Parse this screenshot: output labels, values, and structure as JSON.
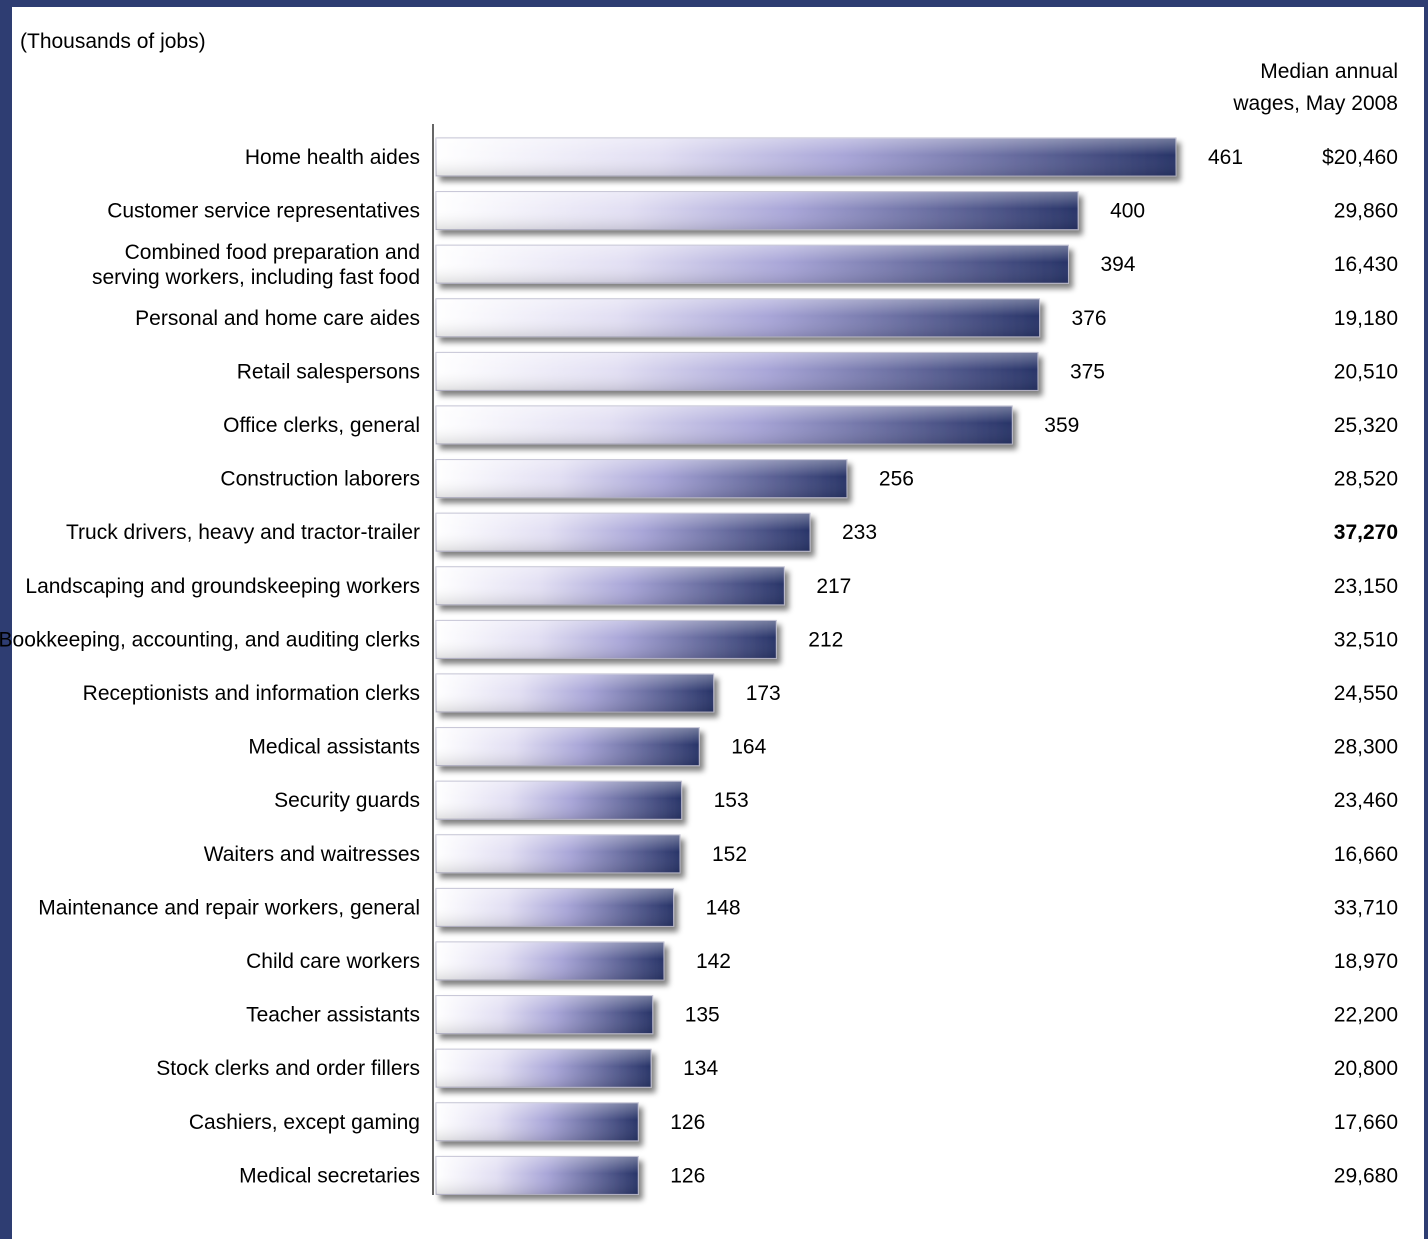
{
  "chart_data": {
    "type": "bar",
    "orientation": "horizontal",
    "unit_note": "(Thousands of jobs)",
    "wage_header": [
      "Median annual",
      "wages, May 2008"
    ],
    "categories": [
      [
        "Home health aides"
      ],
      [
        "Customer service representatives"
      ],
      [
        "Combined food preparation and",
        "serving workers, including fast food"
      ],
      [
        "Personal and home care aides"
      ],
      [
        "Retail salespersons"
      ],
      [
        "Office clerks, general"
      ],
      [
        "Construction laborers"
      ],
      [
        "Truck drivers, heavy and tractor-trailer"
      ],
      [
        "Landscaping and groundskeeping workers"
      ],
      [
        "Bookkeeping, accounting, and auditing clerks"
      ],
      [
        "Receptionists and information clerks"
      ],
      [
        "Medical assistants"
      ],
      [
        "Security guards"
      ],
      [
        "Waiters and waitresses"
      ],
      [
        "Maintenance and repair workers, general"
      ],
      [
        "Child care workers"
      ],
      [
        "Teacher assistants"
      ],
      [
        "Stock clerks and order fillers"
      ],
      [
        "Cashiers, except gaming"
      ],
      [
        "Medical secretaries"
      ]
    ],
    "values": [
      461,
      400,
      394,
      376,
      375,
      359,
      256,
      233,
      217,
      212,
      173,
      164,
      153,
      152,
      148,
      142,
      135,
      134,
      126,
      126
    ],
    "wages": [
      "$20,460",
      "29,860",
      "16,430",
      "19,180",
      "20,510",
      "25,320",
      "28,520",
      "37,270",
      "23,150",
      "32,510",
      "24,550",
      "28,300",
      "23,460",
      "16,660",
      "33,710",
      "18,970",
      "22,200",
      "20,800",
      "17,660",
      "29,680"
    ],
    "bold_wage_index": 7,
    "xlim": [
      0,
      461
    ],
    "grid": false,
    "bar_colors": {
      "start": "#ffffff",
      "mid": "#a9a6d8",
      "end": "#283468"
    }
  }
}
